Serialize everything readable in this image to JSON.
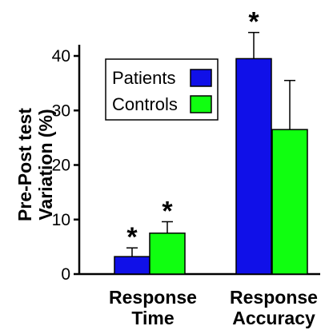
{
  "chart_data": {
    "type": "bar",
    "title": "",
    "ylabel_lines": [
      "Pre-Post test",
      "Variation (%)"
    ],
    "xlabel": "",
    "ylim": [
      0,
      40
    ],
    "yticks": [
      0,
      10,
      20,
      30,
      40
    ],
    "categories": [
      {
        "lines": [
          "Response",
          "Time"
        ]
      },
      {
        "lines": [
          "Response",
          "Accuracy"
        ]
      }
    ],
    "series": [
      {
        "name": "Patients",
        "color": "#1010e8",
        "values": [
          3.2,
          39.5
        ],
        "errors": [
          1.6,
          4.8
        ]
      },
      {
        "name": "Controls",
        "color": "#10ff10",
        "values": [
          7.5,
          26.5
        ],
        "errors": [
          2.1,
          9.0
        ]
      }
    ],
    "significance": [
      {
        "series": 0,
        "category": 0,
        "label": "*"
      },
      {
        "series": 1,
        "category": 0,
        "label": "*"
      },
      {
        "series": 0,
        "category": 1,
        "label": "*"
      }
    ],
    "legend": {
      "placement": "top-left",
      "labels": [
        "Patients",
        "Controls"
      ]
    },
    "grid": false
  }
}
